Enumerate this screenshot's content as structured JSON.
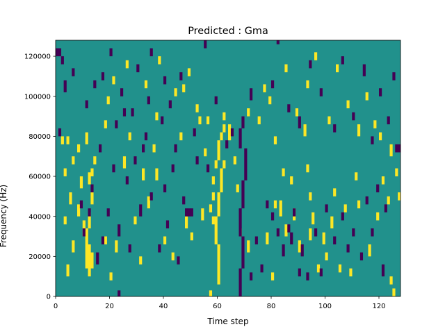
{
  "chart_data": {
    "type": "heatmap",
    "title": "Predicted : Gma",
    "xlabel": "Time step",
    "ylabel": "Frequency (Hz)",
    "xlim": [
      0,
      128
    ],
    "ylim": [
      0,
      128000
    ],
    "x_ticks": [
      0,
      20,
      40,
      60,
      80,
      100,
      120
    ],
    "x_tick_labels": [
      "0",
      "20",
      "40",
      "60",
      "80",
      "100",
      "120"
    ],
    "y_ticks": [
      0,
      20000,
      40000,
      60000,
      80000,
      100000,
      120000
    ],
    "y_tick_labels": [
      "0",
      "20000",
      "40000",
      "60000",
      "80000",
      "100000",
      "120000"
    ],
    "grid": false,
    "legend": false,
    "colors": {
      "background": "#21918c",
      "high": "#fde725",
      "low": "#440154"
    },
    "value_levels": {
      "background": 0,
      "high": 1,
      "low": -1
    },
    "n_time_steps": 128,
    "n_freq_bins": 128,
    "bin_hz": 1000,
    "high_cells": [
      [
        57,
        0,
        3
      ],
      [
        60,
        6,
        26
      ],
      [
        59,
        26,
        40
      ],
      [
        60,
        40,
        52
      ],
      [
        61,
        52,
        64
      ],
      [
        59,
        64,
        68
      ],
      [
        62,
        64,
        68
      ],
      [
        60,
        68,
        78
      ],
      [
        61,
        78,
        82
      ],
      [
        62,
        82,
        86
      ],
      [
        58,
        36,
        40
      ],
      [
        58,
        48,
        52
      ],
      [
        58,
        56,
        60
      ],
      [
        11,
        14,
        34
      ],
      [
        12,
        10,
        26
      ],
      [
        13,
        14,
        22
      ],
      [
        10,
        30,
        38
      ],
      [
        12,
        34,
        42
      ],
      [
        13,
        46,
        52
      ],
      [
        12,
        56,
        62
      ],
      [
        13,
        60,
        64
      ],
      [
        11,
        76,
        82
      ],
      [
        3,
        36,
        40
      ],
      [
        3,
        60,
        64
      ],
      [
        4,
        10,
        16
      ],
      [
        5,
        46,
        52
      ],
      [
        6,
        22,
        28
      ],
      [
        6,
        66,
        70
      ],
      [
        8,
        40,
        46
      ],
      [
        9,
        54,
        60
      ],
      [
        2,
        76,
        80
      ],
      [
        4,
        76,
        80
      ],
      [
        8,
        72,
        76
      ],
      [
        14,
        66,
        70
      ],
      [
        18,
        26,
        30
      ],
      [
        18,
        84,
        88
      ],
      [
        20,
        8,
        12
      ],
      [
        22,
        22,
        28
      ],
      [
        25,
        64,
        70
      ],
      [
        29,
        36,
        40
      ],
      [
        31,
        16,
        20
      ],
      [
        32,
        58,
        64
      ],
      [
        34,
        44,
        50
      ],
      [
        36,
        72,
        76
      ],
      [
        37,
        58,
        64
      ],
      [
        40,
        26,
        30
      ],
      [
        43,
        18,
        22
      ],
      [
        46,
        78,
        82
      ],
      [
        47,
        102,
        106
      ],
      [
        48,
        34,
        40
      ],
      [
        50,
        28,
        32
      ],
      [
        53,
        86,
        90
      ],
      [
        54,
        38,
        44
      ],
      [
        55,
        70,
        74
      ],
      [
        56,
        86,
        90
      ],
      [
        57,
        42,
        46
      ],
      [
        62,
        88,
        92
      ],
      [
        64,
        78,
        84
      ],
      [
        66,
        66,
        70
      ],
      [
        67,
        52,
        56
      ],
      [
        68,
        30,
        34
      ],
      [
        71,
        22,
        28
      ],
      [
        78,
        26,
        32
      ],
      [
        80,
        8,
        12
      ],
      [
        81,
        44,
        48
      ],
      [
        81,
        76,
        80
      ],
      [
        83,
        40,
        48
      ],
      [
        84,
        60,
        64
      ],
      [
        85,
        30,
        36
      ],
      [
        87,
        56,
        60
      ],
      [
        88,
        38,
        44
      ],
      [
        90,
        22,
        28
      ],
      [
        92,
        80,
        86
      ],
      [
        93,
        62,
        66
      ],
      [
        94,
        28,
        34
      ],
      [
        94,
        48,
        52
      ],
      [
        95,
        36,
        42
      ],
      [
        97,
        12,
        16
      ],
      [
        99,
        26,
        32
      ],
      [
        100,
        18,
        22
      ],
      [
        102,
        34,
        40
      ],
      [
        103,
        50,
        54
      ],
      [
        105,
        12,
        16
      ],
      [
        107,
        42,
        46
      ],
      [
        109,
        10,
        14
      ],
      [
        111,
        58,
        62
      ],
      [
        112,
        44,
        48
      ],
      [
        116,
        20,
        26
      ],
      [
        119,
        38,
        42
      ],
      [
        121,
        56,
        60
      ],
      [
        123,
        46,
        50
      ],
      [
        124,
        6,
        10
      ],
      [
        125,
        0,
        4
      ],
      [
        126,
        60,
        64
      ],
      [
        127,
        48,
        52
      ],
      [
        19,
        96,
        100
      ],
      [
        21,
        106,
        110
      ],
      [
        26,
        114,
        118
      ],
      [
        27,
        78,
        82
      ],
      [
        33,
        104,
        108
      ],
      [
        37,
        88,
        92
      ],
      [
        38,
        116,
        120
      ],
      [
        44,
        100,
        104
      ],
      [
        49,
        110,
        114
      ],
      [
        52,
        92,
        96
      ],
      [
        64,
        82,
        86
      ],
      [
        71,
        90,
        94
      ],
      [
        75,
        86,
        90
      ],
      [
        77,
        102,
        106
      ],
      [
        79,
        96,
        100
      ],
      [
        85,
        112,
        116
      ],
      [
        89,
        90,
        94
      ],
      [
        93,
        104,
        108
      ],
      [
        96,
        118,
        122
      ],
      [
        101,
        86,
        90
      ],
      [
        104,
        112,
        116
      ],
      [
        108,
        94,
        98
      ],
      [
        112,
        80,
        86
      ],
      [
        115,
        98,
        102
      ],
      [
        118,
        84,
        88
      ],
      [
        120,
        78,
        82
      ],
      [
        124,
        70,
        76
      ]
    ],
    "low_cells": [
      [
        68,
        0,
        14
      ],
      [
        69,
        14,
        30
      ],
      [
        68,
        30,
        44
      ],
      [
        69,
        44,
        58
      ],
      [
        70,
        58,
        74
      ],
      [
        68,
        74,
        84
      ],
      [
        69,
        84,
        90
      ],
      [
        48,
        40,
        44
      ],
      [
        49,
        40,
        44
      ],
      [
        50,
        40,
        44
      ],
      [
        0,
        120,
        124
      ],
      [
        1,
        120,
        124
      ],
      [
        2,
        116,
        120
      ],
      [
        1,
        80,
        84
      ],
      [
        9,
        44,
        48
      ],
      [
        10,
        30,
        34
      ],
      [
        12,
        40,
        44
      ],
      [
        15,
        16,
        22
      ],
      [
        17,
        26,
        30
      ],
      [
        19,
        40,
        44
      ],
      [
        21,
        62,
        66
      ],
      [
        23,
        30,
        36
      ],
      [
        26,
        56,
        60
      ],
      [
        27,
        22,
        26
      ],
      [
        29,
        66,
        70
      ],
      [
        31,
        40,
        46
      ],
      [
        32,
        72,
        76
      ],
      [
        35,
        48,
        52
      ],
      [
        38,
        22,
        26
      ],
      [
        40,
        52,
        56
      ],
      [
        41,
        34,
        38
      ],
      [
        43,
        62,
        66
      ],
      [
        45,
        16,
        20
      ],
      [
        47,
        46,
        50
      ],
      [
        72,
        8,
        12
      ],
      [
        74,
        26,
        30
      ],
      [
        76,
        12,
        16
      ],
      [
        78,
        44,
        48
      ],
      [
        80,
        38,
        42
      ],
      [
        82,
        30,
        34
      ],
      [
        84,
        20,
        26
      ],
      [
        86,
        32,
        36
      ],
      [
        87,
        26,
        32
      ],
      [
        88,
        40,
        44
      ],
      [
        90,
        10,
        14
      ],
      [
        91,
        20,
        26
      ],
      [
        93,
        8,
        12
      ],
      [
        96,
        30,
        34
      ],
      [
        98,
        10,
        14
      ],
      [
        100,
        42,
        46
      ],
      [
        103,
        26,
        30
      ],
      [
        106,
        38,
        42
      ],
      [
        108,
        22,
        26
      ],
      [
        110,
        30,
        34
      ],
      [
        113,
        18,
        22
      ],
      [
        115,
        46,
        50
      ],
      [
        117,
        30,
        34
      ],
      [
        119,
        52,
        56
      ],
      [
        121,
        10,
        16
      ],
      [
        122,
        42,
        46
      ],
      [
        126,
        72,
        76
      ],
      [
        127,
        72,
        76
      ],
      [
        3,
        102,
        108
      ],
      [
        6,
        110,
        114
      ],
      [
        11,
        94,
        98
      ],
      [
        14,
        104,
        108
      ],
      [
        17,
        108,
        112
      ],
      [
        20,
        120,
        124
      ],
      [
        23,
        0,
        3
      ],
      [
        24,
        100,
        104
      ],
      [
        28,
        90,
        94
      ],
      [
        30,
        112,
        116
      ],
      [
        34,
        96,
        100
      ],
      [
        35,
        120,
        124
      ],
      [
        40,
        106,
        110
      ],
      [
        42,
        94,
        98
      ],
      [
        46,
        108,
        112
      ],
      [
        51,
        80,
        84
      ],
      [
        55,
        124,
        128
      ],
      [
        63,
        74,
        78
      ],
      [
        65,
        80,
        84
      ],
      [
        72,
        98,
        104
      ],
      [
        80,
        104,
        108
      ],
      [
        82,
        126,
        128
      ],
      [
        86,
        92,
        96
      ],
      [
        90,
        84,
        90
      ],
      [
        94,
        114,
        118
      ],
      [
        98,
        100,
        104
      ],
      [
        103,
        82,
        86
      ],
      [
        106,
        116,
        120
      ],
      [
        110,
        88,
        92
      ],
      [
        114,
        110,
        116
      ],
      [
        117,
        76,
        80
      ],
      [
        120,
        100,
        104
      ],
      [
        123,
        86,
        90
      ],
      [
        125,
        108,
        112
      ],
      [
        13,
        52,
        56
      ],
      [
        16,
        72,
        76
      ],
      [
        22,
        84,
        88
      ],
      [
        25,
        90,
        94
      ],
      [
        33,
        78,
        82
      ],
      [
        39,
        86,
        90
      ],
      [
        44,
        72,
        76
      ],
      [
        52,
        66,
        70
      ],
      [
        56,
        62,
        66
      ],
      [
        59,
        96,
        100
      ]
    ]
  }
}
